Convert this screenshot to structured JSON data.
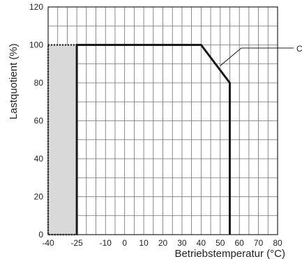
{
  "chart_data": {
    "type": "line",
    "title": "",
    "xlabel": "Betriebstemperatur (°C)",
    "ylabel": "Lastquotient (%)",
    "xlim": [
      -40,
      80
    ],
    "ylim": [
      0,
      120
    ],
    "x_ticks": [
      -40,
      -25,
      -10,
      0,
      10,
      20,
      30,
      40,
      50,
      60,
      70,
      80
    ],
    "x_tick_labels": [
      "-40",
      "-25",
      "-10",
      "0",
      "10",
      "20",
      "30",
      "40",
      "50",
      "60",
      "70",
      "80"
    ],
    "y_ticks": [
      0,
      20,
      40,
      60,
      80,
      100,
      120
    ],
    "y_tick_labels": [
      "0",
      "20",
      "40",
      "60",
      "80",
      "100",
      "120"
    ],
    "x_gridlines": [
      -40,
      -35,
      -30,
      -25,
      -20,
      -15,
      -10,
      -5,
      0,
      5,
      10,
      15,
      20,
      25,
      30,
      35,
      40,
      45,
      50,
      55,
      60,
      65,
      70,
      75,
      80
    ],
    "y_gridlines": [
      0,
      10,
      20,
      30,
      40,
      50,
      60,
      70,
      80,
      90,
      100,
      110,
      120
    ],
    "grid": true,
    "series": [
      {
        "points": [
          {
            "x": -25,
            "y": 0
          },
          {
            "x": -25,
            "y": 100
          },
          {
            "x": 40,
            "y": 100
          },
          {
            "x": 55,
            "y": 80
          },
          {
            "x": 55,
            "y": 0
          }
        ],
        "color": "#1a1a1a"
      }
    ],
    "shaded_region": {
      "x": [
        -40,
        -25
      ],
      "y": [
        0,
        100
      ],
      "fill": "#d9d9d9",
      "border": "dotted"
    },
    "annotation": {
      "text": "C",
      "target": {
        "x": 50,
        "y": 89
      }
    }
  }
}
